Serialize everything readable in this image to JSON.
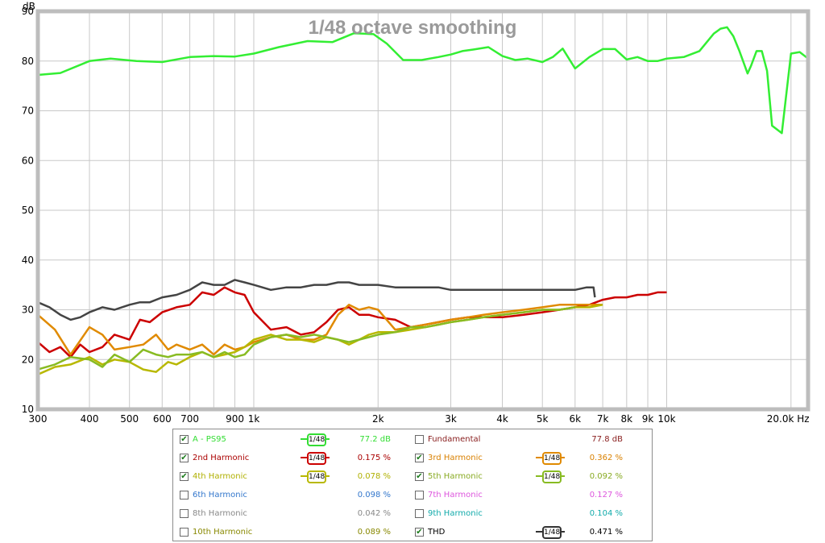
{
  "chart_data": {
    "type": "line",
    "title": "1/48 octave smoothing",
    "ylabel": "dB",
    "xlabel": "Hz",
    "x_scale": "log",
    "xlim": [
      300,
      22000
    ],
    "ylim": [
      10,
      90
    ],
    "grid": true,
    "y_ticks": [
      "10",
      "20",
      "30",
      "40",
      "50",
      "60",
      "70",
      "80",
      "90"
    ],
    "x_ticks": [
      {
        "v": 300,
        "label": "300"
      },
      {
        "v": 400,
        "label": "400"
      },
      {
        "v": 500,
        "label": "500"
      },
      {
        "v": 600,
        "label": "600"
      },
      {
        "v": 700,
        "label": "700"
      },
      {
        "v": 900,
        "label": "900"
      },
      {
        "v": 1000,
        "label": "1k"
      },
      {
        "v": 2000,
        "label": "2k"
      },
      {
        "v": 3000,
        "label": "3k"
      },
      {
        "v": 4000,
        "label": "4k"
      },
      {
        "v": 5000,
        "label": "5k"
      },
      {
        "v": 6000,
        "label": "6k"
      },
      {
        "v": 7000,
        "label": "7k"
      },
      {
        "v": 8000,
        "label": "8k"
      },
      {
        "v": 9000,
        "label": "9k"
      },
      {
        "v": 10000,
        "label": "10k"
      },
      {
        "v": 20000,
        "label": "20.0k Hz"
      }
    ],
    "series": [
      {
        "name": "A - PS95",
        "color": "#33ee33",
        "x": [
          300,
          340,
          400,
          450,
          520,
          600,
          700,
          800,
          900,
          1000,
          1150,
          1350,
          1550,
          1750,
          1950,
          2100,
          2300,
          2550,
          2800,
          3000,
          3200,
          3400,
          3700,
          4000,
          4300,
          4600,
          5000,
          5300,
          5600,
          6000,
          6500,
          7000,
          7500,
          8000,
          8500,
          9000,
          9500,
          10000,
          11000,
          12000,
          13000,
          13500,
          14000,
          14500,
          15000,
          15700,
          16000,
          16500,
          17000,
          17500,
          18000,
          19000,
          20000,
          21000,
          22000
        ],
        "y": [
          77.2,
          77.6,
          80,
          80.5,
          80,
          79.8,
          80.8,
          81,
          80.9,
          81.5,
          82.8,
          84,
          83.8,
          85.6,
          85.4,
          83.5,
          80.2,
          80.2,
          80.8,
          81.3,
          82,
          82.3,
          82.8,
          81,
          80.2,
          80.5,
          79.8,
          80.8,
          82.5,
          78.5,
          80.8,
          82.4,
          82.4,
          80.3,
          80.8,
          80,
          80,
          80.5,
          80.8,
          82,
          85.5,
          86.5,
          86.8,
          85,
          82,
          77.5,
          79,
          82,
          82,
          78,
          67,
          65.5,
          81.5,
          81.8,
          80.5
        ]
      },
      {
        "name": "2nd Harmonic",
        "color": "#cc0000",
        "x": [
          300,
          320,
          340,
          360,
          380,
          400,
          430,
          460,
          500,
          530,
          560,
          600,
          650,
          700,
          750,
          800,
          850,
          900,
          950,
          1000,
          1100,
          1200,
          1300,
          1400,
          1500,
          1600,
          1700,
          1800,
          1900,
          2000,
          2200,
          2400,
          2600,
          2800,
          3000,
          3300,
          3600,
          4000,
          4500,
          5000,
          5500,
          6000,
          6500,
          7000,
          7500,
          8000,
          8500,
          9000,
          9500,
          10000
        ],
        "y": [
          23.5,
          21.5,
          22.5,
          20.5,
          23,
          21.5,
          22.5,
          25,
          24,
          28,
          27.5,
          29.5,
          30.5,
          31,
          33.5,
          33,
          34.5,
          33.5,
          33,
          29.5,
          26,
          26.5,
          25,
          25.5,
          27.5,
          30,
          30.5,
          29,
          29,
          28.5,
          28,
          26.5,
          27,
          27.5,
          28,
          28.5,
          28.5,
          28.5,
          29,
          29.5,
          30,
          30.5,
          31,
          32,
          32.5,
          32.5,
          33,
          33,
          33.5,
          33.5
        ]
      },
      {
        "name": "3rd Harmonic",
        "color": "#e08a00",
        "x": [
          300,
          330,
          360,
          400,
          430,
          460,
          500,
          540,
          580,
          620,
          650,
          700,
          750,
          800,
          850,
          900,
          950,
          1000,
          1100,
          1200,
          1300,
          1400,
          1500,
          1600,
          1700,
          1800,
          1900,
          2000,
          2200,
          2400,
          2600,
          2800,
          3000,
          3300,
          3600,
          4000,
          4500,
          5000,
          5500,
          6000,
          6500,
          7000
        ],
        "y": [
          29,
          26,
          21,
          26.5,
          25,
          22,
          22.5,
          23,
          25,
          22,
          23,
          22,
          23,
          21,
          23,
          22,
          22.5,
          23.5,
          24.5,
          25,
          24,
          24,
          25,
          29,
          31,
          30,
          30.5,
          30,
          26,
          26.5,
          27,
          27.5,
          28,
          28.5,
          29,
          29.5,
          30,
          30.5,
          31,
          31,
          31,
          31
        ]
      },
      {
        "name": "4th Harmonic",
        "color": "#b8b800",
        "x": [
          300,
          330,
          360,
          400,
          430,
          460,
          500,
          540,
          580,
          620,
          650,
          700,
          750,
          800,
          850,
          900,
          950,
          1000,
          1100,
          1200,
          1300,
          1400,
          1500,
          1600,
          1700,
          1800,
          1900,
          2000,
          2200,
          2400,
          2600,
          2800,
          3000,
          3300,
          3600,
          4000,
          4500,
          5000,
          5500,
          6000,
          6500,
          7000
        ],
        "y": [
          17,
          18.5,
          19,
          20.5,
          19,
          20,
          19.5,
          18,
          17.5,
          19.5,
          19,
          20.5,
          21.5,
          20.5,
          21,
          21.5,
          22.5,
          24,
          25,
          24,
          24,
          23.5,
          24.5,
          24,
          23,
          24,
          25,
          25.5,
          25.5,
          26,
          26.5,
          27,
          27.5,
          28,
          28.5,
          29,
          29.5,
          30,
          30,
          30.5,
          30.5,
          31
        ]
      },
      {
        "name": "5th Harmonic",
        "color": "#88bb22",
        "x": [
          300,
          330,
          360,
          400,
          430,
          460,
          500,
          540,
          580,
          620,
          650,
          700,
          750,
          800,
          850,
          900,
          950,
          1000,
          1100,
          1200,
          1300,
          1400,
          1500,
          1600,
          1700,
          1800,
          1900,
          2000,
          2200,
          2400,
          2600,
          2800,
          3000,
          3300,
          3600,
          4000,
          4500,
          5000,
          5500,
          6000
        ],
        "y": [
          18,
          19,
          20.5,
          20,
          18.5,
          21,
          19.5,
          22,
          21,
          20.5,
          21,
          21,
          21.5,
          20.5,
          21.5,
          20.5,
          21,
          23,
          24.5,
          25,
          24.5,
          25,
          24.5,
          24,
          23.5,
          24,
          24.5,
          25,
          25.5,
          26.5,
          26.5,
          27,
          27.5,
          28,
          28.5,
          29,
          29.5,
          30,
          30,
          30.5
        ]
      },
      {
        "name": "THD",
        "color": "#444444",
        "x": [
          300,
          320,
          340,
          360,
          380,
          400,
          430,
          460,
          500,
          530,
          560,
          600,
          650,
          700,
          750,
          800,
          850,
          900,
          950,
          1000,
          1100,
          1200,
          1300,
          1400,
          1500,
          1600,
          1700,
          1800,
          1900,
          2000,
          2200,
          2400,
          2600,
          2800,
          3000,
          3300,
          3600,
          4000,
          4500,
          5000,
          5500,
          6000,
          6400,
          6650,
          6700
        ],
        "y": [
          31.5,
          30.5,
          29,
          28,
          28.5,
          29.5,
          30.5,
          30,
          31,
          31.5,
          31.5,
          32.5,
          33,
          34,
          35.5,
          35,
          35,
          36,
          35.5,
          35,
          34,
          34.5,
          34.5,
          35,
          35,
          35.5,
          35.5,
          35,
          35,
          35,
          34.5,
          34.5,
          34.5,
          34.5,
          34,
          34,
          34,
          34,
          34,
          34,
          34,
          34,
          34.5,
          34.5,
          32.5
        ]
      }
    ]
  },
  "legend": {
    "rows": [
      {
        "left": {
          "name": "A - PS95",
          "checked": true,
          "smoothing": "1/48",
          "value": "77.2 dB",
          "color": "#33dd33",
          "smooth_color": "#33dd33"
        },
        "right": {
          "name": "Fundamental",
          "checked": false,
          "smoothing": "",
          "value": "77.8 dB",
          "color": "#8a2020",
          "smooth_color": ""
        }
      },
      {
        "left": {
          "name": "2nd Harmonic",
          "checked": true,
          "smoothing": "1/48",
          "value": "0.175 %",
          "color": "#aa0000",
          "smooth_color": "#cc0000"
        },
        "right": {
          "name": "3rd Harmonic",
          "checked": true,
          "smoothing": "1/48",
          "value": "0.362 %",
          "color": "#d98000",
          "smooth_color": "#e08a00"
        }
      },
      {
        "left": {
          "name": "4th Harmonic",
          "checked": true,
          "smoothing": "1/48",
          "value": "0.078 %",
          "color": "#b0b000",
          "smooth_color": "#b8b800"
        },
        "right": {
          "name": "5th Harmonic",
          "checked": true,
          "smoothing": "1/48",
          "value": "0.092 %",
          "color": "#88aa22",
          "smooth_color": "#88bb22"
        }
      },
      {
        "left": {
          "name": "6th Harmonic",
          "checked": false,
          "smoothing": "",
          "value": "0.098 %",
          "color": "#3377cc",
          "smooth_color": ""
        },
        "right": {
          "name": "7th Harmonic",
          "checked": false,
          "smoothing": "",
          "value": "0.127 %",
          "color": "#dd55dd",
          "smooth_color": ""
        }
      },
      {
        "left": {
          "name": "8th Harmonic",
          "checked": false,
          "smoothing": "",
          "value": "0.042 %",
          "color": "#888888",
          "smooth_color": ""
        },
        "right": {
          "name": "9th Harmonic",
          "checked": false,
          "smoothing": "",
          "value": "0.104 %",
          "color": "#11aaaa",
          "smooth_color": ""
        }
      },
      {
        "left": {
          "name": "10th Harmonic",
          "checked": false,
          "smoothing": "",
          "value": "0.089 %",
          "color": "#888800",
          "smooth_color": ""
        },
        "right": {
          "name": "THD",
          "checked": true,
          "smoothing": "1/48",
          "value": "0.471 %",
          "color": "#000000",
          "smooth_color": "#333333"
        }
      }
    ]
  }
}
